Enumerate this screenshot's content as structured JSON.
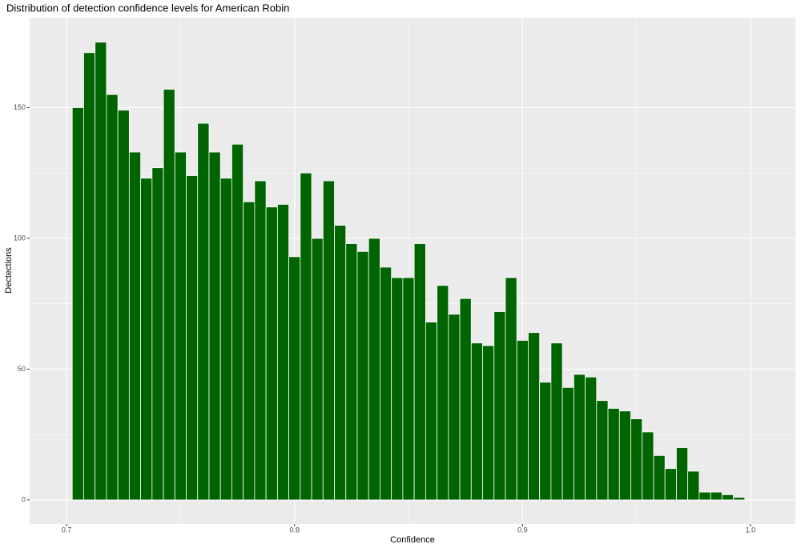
{
  "chart_data": {
    "type": "histogram",
    "title": "Distribution of detection confidence levels for American Robin",
    "x_label": "Confidence",
    "y_label": "Dectections",
    "bins": [
      0.7025,
      0.7075,
      0.7125,
      0.7175,
      0.7225,
      0.7275,
      0.7325,
      0.7375,
      0.7425,
      0.7475,
      0.7525,
      0.7575,
      0.7625,
      0.7675,
      0.7725,
      0.7775,
      0.7825,
      0.7875,
      0.7925,
      0.7975,
      0.8025,
      0.8075,
      0.8125,
      0.8175,
      0.8225,
      0.8275,
      0.8325,
      0.8375,
      0.8425,
      0.8475,
      0.8525,
      0.8575,
      0.8625,
      0.8675,
      0.8725,
      0.8775,
      0.8825,
      0.8875,
      0.8925,
      0.8975,
      0.9025,
      0.9075,
      0.9125,
      0.9175,
      0.9225,
      0.9275,
      0.9325,
      0.9375,
      0.9425,
      0.9475,
      0.9525,
      0.9575,
      0.9625,
      0.9675,
      0.9725,
      0.9775,
      0.9825,
      0.9875,
      0.9925,
      0.9975
    ],
    "values": [
      150,
      171,
      175,
      155,
      149,
      133,
      123,
      127,
      157,
      133,
      124,
      144,
      133,
      123,
      136,
      114,
      122,
      112,
      113,
      93,
      125,
      100,
      122,
      105,
      98,
      95,
      100,
      89,
      85,
      85,
      98,
      68,
      82,
      71,
      77,
      60,
      59,
      72,
      85,
      61,
      64,
      45,
      60,
      43,
      48,
      47,
      38,
      35,
      34,
      31,
      26,
      17,
      12,
      20,
      11,
      3,
      3,
      2,
      1
    ],
    "color": "#006400",
    "xlim": [
      0.6838,
      1.0197
    ],
    "ylim": [
      -9.2,
      184.4
    ],
    "xticks": [
      0.7,
      0.8,
      0.9,
      {
        "value": 1,
        "label": "1.0"
      }
    ],
    "yticks": [
      0,
      50,
      100,
      150
    ],
    "grid": true
  }
}
